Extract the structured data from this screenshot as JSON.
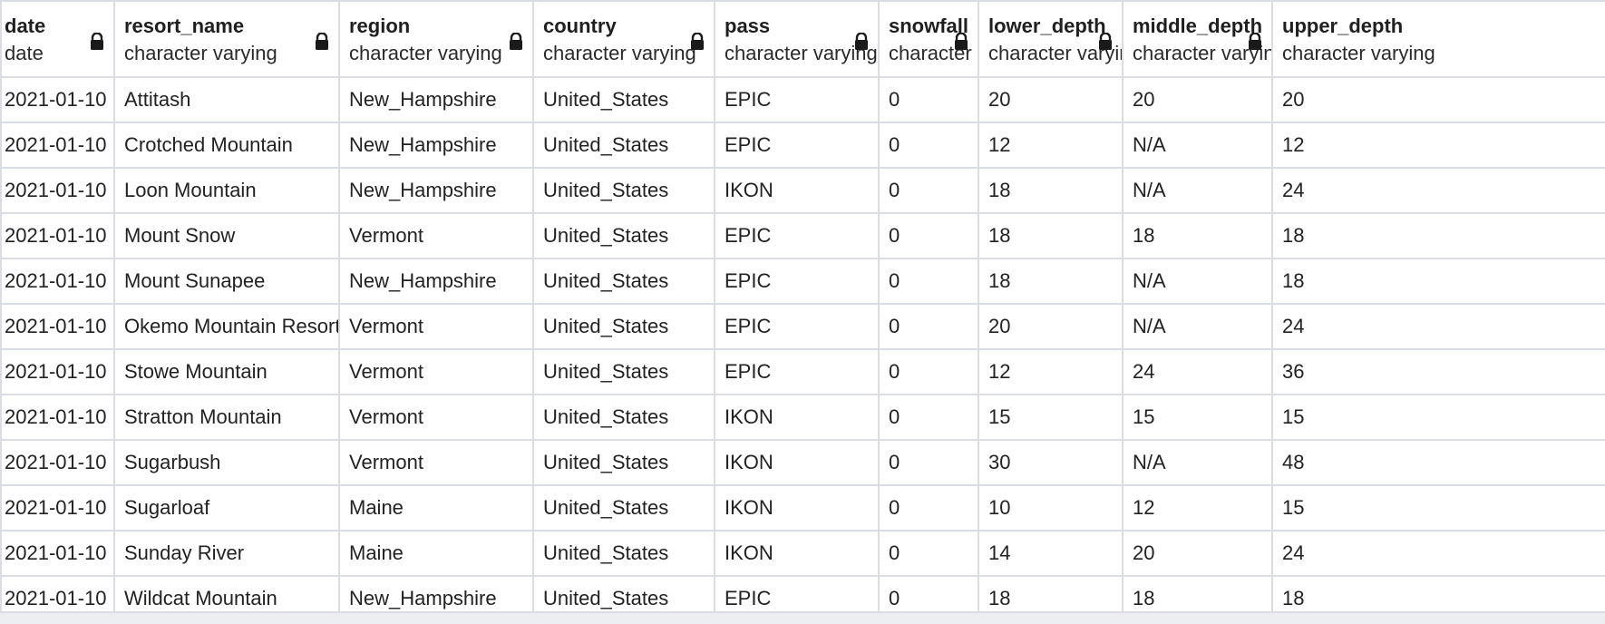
{
  "columns": [
    {
      "name": "date",
      "type": "date"
    },
    {
      "name": "resort_name",
      "type": "character varying"
    },
    {
      "name": "region",
      "type": "character varying"
    },
    {
      "name": "country",
      "type": "character varying"
    },
    {
      "name": "pass",
      "type": "character varying"
    },
    {
      "name": "snowfall",
      "type": "character varying"
    },
    {
      "name": "lower_depth",
      "type": "character varying"
    },
    {
      "name": "middle_depth",
      "type": "character varying"
    },
    {
      "name": "upper_depth",
      "type": "character varying"
    }
  ],
  "rows": [
    [
      "2021-01-10",
      "Attitash",
      "New_Hampshire",
      "United_States",
      "EPIC",
      "0",
      "20",
      "20",
      "20"
    ],
    [
      "2021-01-10",
      "Crotched Mountain",
      "New_Hampshire",
      "United_States",
      "EPIC",
      "0",
      "12",
      "N/A",
      "12"
    ],
    [
      "2021-01-10",
      "Loon Mountain",
      "New_Hampshire",
      "United_States",
      "IKON",
      "0",
      "18",
      "N/A",
      "24"
    ],
    [
      "2021-01-10",
      "Mount Snow",
      "Vermont",
      "United_States",
      "EPIC",
      "0",
      "18",
      "18",
      "18"
    ],
    [
      "2021-01-10",
      "Mount Sunapee",
      "New_Hampshire",
      "United_States",
      "EPIC",
      "0",
      "18",
      "N/A",
      "18"
    ],
    [
      "2021-01-10",
      "Okemo Mountain Resort",
      "Vermont",
      "United_States",
      "EPIC",
      "0",
      "20",
      "N/A",
      "24"
    ],
    [
      "2021-01-10",
      "Stowe Mountain",
      "Vermont",
      "United_States",
      "EPIC",
      "0",
      "12",
      "24",
      "36"
    ],
    [
      "2021-01-10",
      "Stratton Mountain",
      "Vermont",
      "United_States",
      "IKON",
      "0",
      "15",
      "15",
      "15"
    ],
    [
      "2021-01-10",
      "Sugarbush",
      "Vermont",
      "United_States",
      "IKON",
      "0",
      "30",
      "N/A",
      "48"
    ],
    [
      "2021-01-10",
      "Sugarloaf",
      "Maine",
      "United_States",
      "IKON",
      "0",
      "10",
      "12",
      "15"
    ],
    [
      "2021-01-10",
      "Sunday River",
      "Maine",
      "United_States",
      "IKON",
      "0",
      "14",
      "20",
      "24"
    ],
    [
      "2021-01-10",
      "Wildcat Mountain",
      "New_Hampshire",
      "United_States",
      "EPIC",
      "0",
      "18",
      "18",
      "18"
    ]
  ],
  "icons": {
    "column_lock": "lock-icon"
  },
  "colors": {
    "grid_border": "#dadde3",
    "text": "#222222",
    "lock": "#1a1a1a"
  }
}
